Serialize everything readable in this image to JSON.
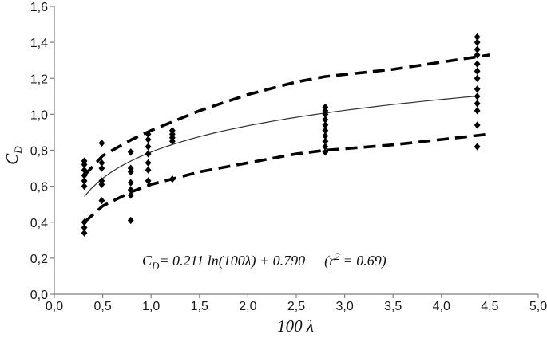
{
  "chart_data": {
    "type": "scatter",
    "xlim": [
      0,
      5
    ],
    "ylim": [
      0,
      1.6
    ],
    "x_ticks": [
      "0,0",
      "0,5",
      "1,0",
      "1,5",
      "2,0",
      "2,5",
      "3,0",
      "3,5",
      "4,0",
      "4,5",
      "5,0"
    ],
    "y_ticks": [
      "0,0",
      "0,2",
      "0,4",
      "0,6",
      "0,8",
      "1,0",
      "1,2",
      "1,4",
      "1,6"
    ],
    "xlabel": "100 λ",
    "ylabel": {
      "base": "C",
      "subscript": "D"
    },
    "grid": false,
    "legend": "none",
    "points_color": "#000000",
    "points": [
      {
        "x": 0.31,
        "y": 0.34
      },
      {
        "x": 0.31,
        "y": 0.37
      },
      {
        "x": 0.31,
        "y": 0.4
      },
      {
        "x": 0.31,
        "y": 0.6
      },
      {
        "x": 0.31,
        "y": 0.63
      },
      {
        "x": 0.31,
        "y": 0.66
      },
      {
        "x": 0.31,
        "y": 0.69
      },
      {
        "x": 0.31,
        "y": 0.72
      },
      {
        "x": 0.31,
        "y": 0.74
      },
      {
        "x": 0.49,
        "y": 0.52
      },
      {
        "x": 0.49,
        "y": 0.61
      },
      {
        "x": 0.49,
        "y": 0.63
      },
      {
        "x": 0.49,
        "y": 0.7
      },
      {
        "x": 0.49,
        "y": 0.73
      },
      {
        "x": 0.49,
        "y": 0.84
      },
      {
        "x": 0.79,
        "y": 0.41
      },
      {
        "x": 0.79,
        "y": 0.55
      },
      {
        "x": 0.79,
        "y": 0.58
      },
      {
        "x": 0.79,
        "y": 0.62
      },
      {
        "x": 0.79,
        "y": 0.68
      },
      {
        "x": 0.79,
        "y": 0.7
      },
      {
        "x": 0.79,
        "y": 0.79
      },
      {
        "x": 0.97,
        "y": 0.63
      },
      {
        "x": 0.97,
        "y": 0.69
      },
      {
        "x": 0.97,
        "y": 0.73
      },
      {
        "x": 0.97,
        "y": 0.78
      },
      {
        "x": 0.97,
        "y": 0.82
      },
      {
        "x": 0.97,
        "y": 0.86
      },
      {
        "x": 0.97,
        "y": 0.89
      },
      {
        "x": 1.22,
        "y": 0.64
      },
      {
        "x": 1.22,
        "y": 0.85
      },
      {
        "x": 1.22,
        "y": 0.87
      },
      {
        "x": 1.22,
        "y": 0.89
      },
      {
        "x": 1.22,
        "y": 0.91
      },
      {
        "x": 2.8,
        "y": 0.79
      },
      {
        "x": 2.8,
        "y": 0.82
      },
      {
        "x": 2.8,
        "y": 0.85
      },
      {
        "x": 2.8,
        "y": 0.88
      },
      {
        "x": 2.8,
        "y": 0.91
      },
      {
        "x": 2.8,
        "y": 0.94
      },
      {
        "x": 2.8,
        "y": 0.97
      },
      {
        "x": 2.8,
        "y": 1.0
      },
      {
        "x": 2.8,
        "y": 1.02
      },
      {
        "x": 2.8,
        "y": 1.04
      },
      {
        "x": 4.37,
        "y": 0.82
      },
      {
        "x": 4.37,
        "y": 0.94
      },
      {
        "x": 4.37,
        "y": 1.02
      },
      {
        "x": 4.37,
        "y": 1.06
      },
      {
        "x": 4.37,
        "y": 1.1
      },
      {
        "x": 4.37,
        "y": 1.14
      },
      {
        "x": 4.37,
        "y": 1.2
      },
      {
        "x": 4.37,
        "y": 1.24
      },
      {
        "x": 4.37,
        "y": 1.28
      },
      {
        "x": 4.37,
        "y": 1.33
      },
      {
        "x": 4.37,
        "y": 1.36
      },
      {
        "x": 4.37,
        "y": 1.4
      },
      {
        "x": 4.37,
        "y": 1.43
      }
    ],
    "fit_curve": {
      "style": "thin solid",
      "x_range": [
        0.31,
        4.37
      ],
      "coef_a": 0.211,
      "coef_b": 0.79
    },
    "upper_bound": {
      "style": "thick dashed",
      "x": [
        0.31,
        0.5,
        0.8,
        1.0,
        1.5,
        2.0,
        2.5,
        2.8,
        3.5,
        4.0,
        4.5
      ],
      "y": [
        0.66,
        0.77,
        0.86,
        0.91,
        1.02,
        1.11,
        1.18,
        1.21,
        1.25,
        1.29,
        1.33
      ]
    },
    "lower_bound": {
      "style": "thick dashed",
      "x": [
        0.31,
        0.5,
        0.8,
        1.0,
        1.5,
        2.0,
        2.5,
        2.8,
        3.5,
        4.0,
        4.5
      ],
      "y": [
        0.4,
        0.49,
        0.57,
        0.61,
        0.68,
        0.73,
        0.78,
        0.8,
        0.83,
        0.86,
        0.89
      ]
    },
    "annotation": {
      "cd_base": "C",
      "cd_sub": "D",
      "equation": "= 0.211 ln(100λ) + 0.790",
      "r_open": "(r",
      "r_exp": "2",
      "r_close": "= 0.69)"
    }
  }
}
